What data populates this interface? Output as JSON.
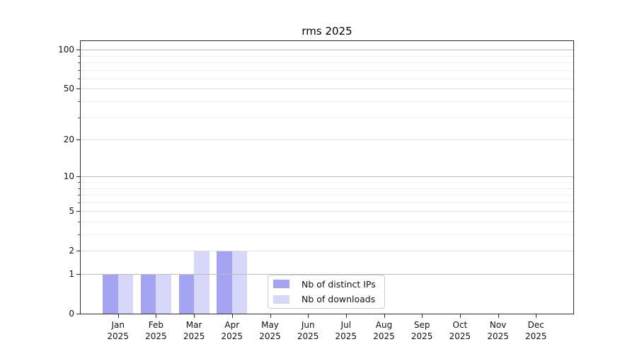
{
  "window": {
    "background": "#ffffff"
  },
  "chart_data": {
    "type": "bar",
    "title": "rms 2025",
    "xlabel": "",
    "ylabel": "",
    "x_year": "2025",
    "categories": [
      "Jan",
      "Feb",
      "Mar",
      "Apr",
      "May",
      "Jun",
      "Jul",
      "Aug",
      "Sep",
      "Oct",
      "Nov",
      "Dec"
    ],
    "series": [
      {
        "name": "Nb of distinct IPs",
        "color": "#a4a4f2",
        "values": [
          1,
          1,
          1,
          2,
          0,
          0,
          0,
          0,
          0,
          0,
          0,
          0
        ]
      },
      {
        "name": "Nb of downloads",
        "color": "#d7d7fa",
        "values": [
          1,
          1,
          2,
          2,
          0,
          0,
          0,
          0,
          0,
          0,
          0,
          0
        ]
      }
    ],
    "yscale": "log1p",
    "ylim": [
      0,
      118
    ],
    "yticks": [
      0,
      1,
      2,
      5,
      10,
      20,
      50,
      100
    ],
    "ytick_labels": [
      "0",
      "1",
      "2",
      "5",
      "10",
      "20",
      "50",
      "100"
    ],
    "yticks_minor": [
      3,
      4,
      6,
      7,
      8,
      9,
      30,
      40,
      60,
      70,
      80,
      90
    ],
    "grid": true,
    "grid_above_bars": true,
    "legend_position": "inside bottom-center-left",
    "colors": {
      "grid_minor": "#efefef",
      "grid_major": "#e0e0e0",
      "grid_decade": "#bdbdbd",
      "axis": "#2b2b2b",
      "text": "#000000"
    }
  }
}
